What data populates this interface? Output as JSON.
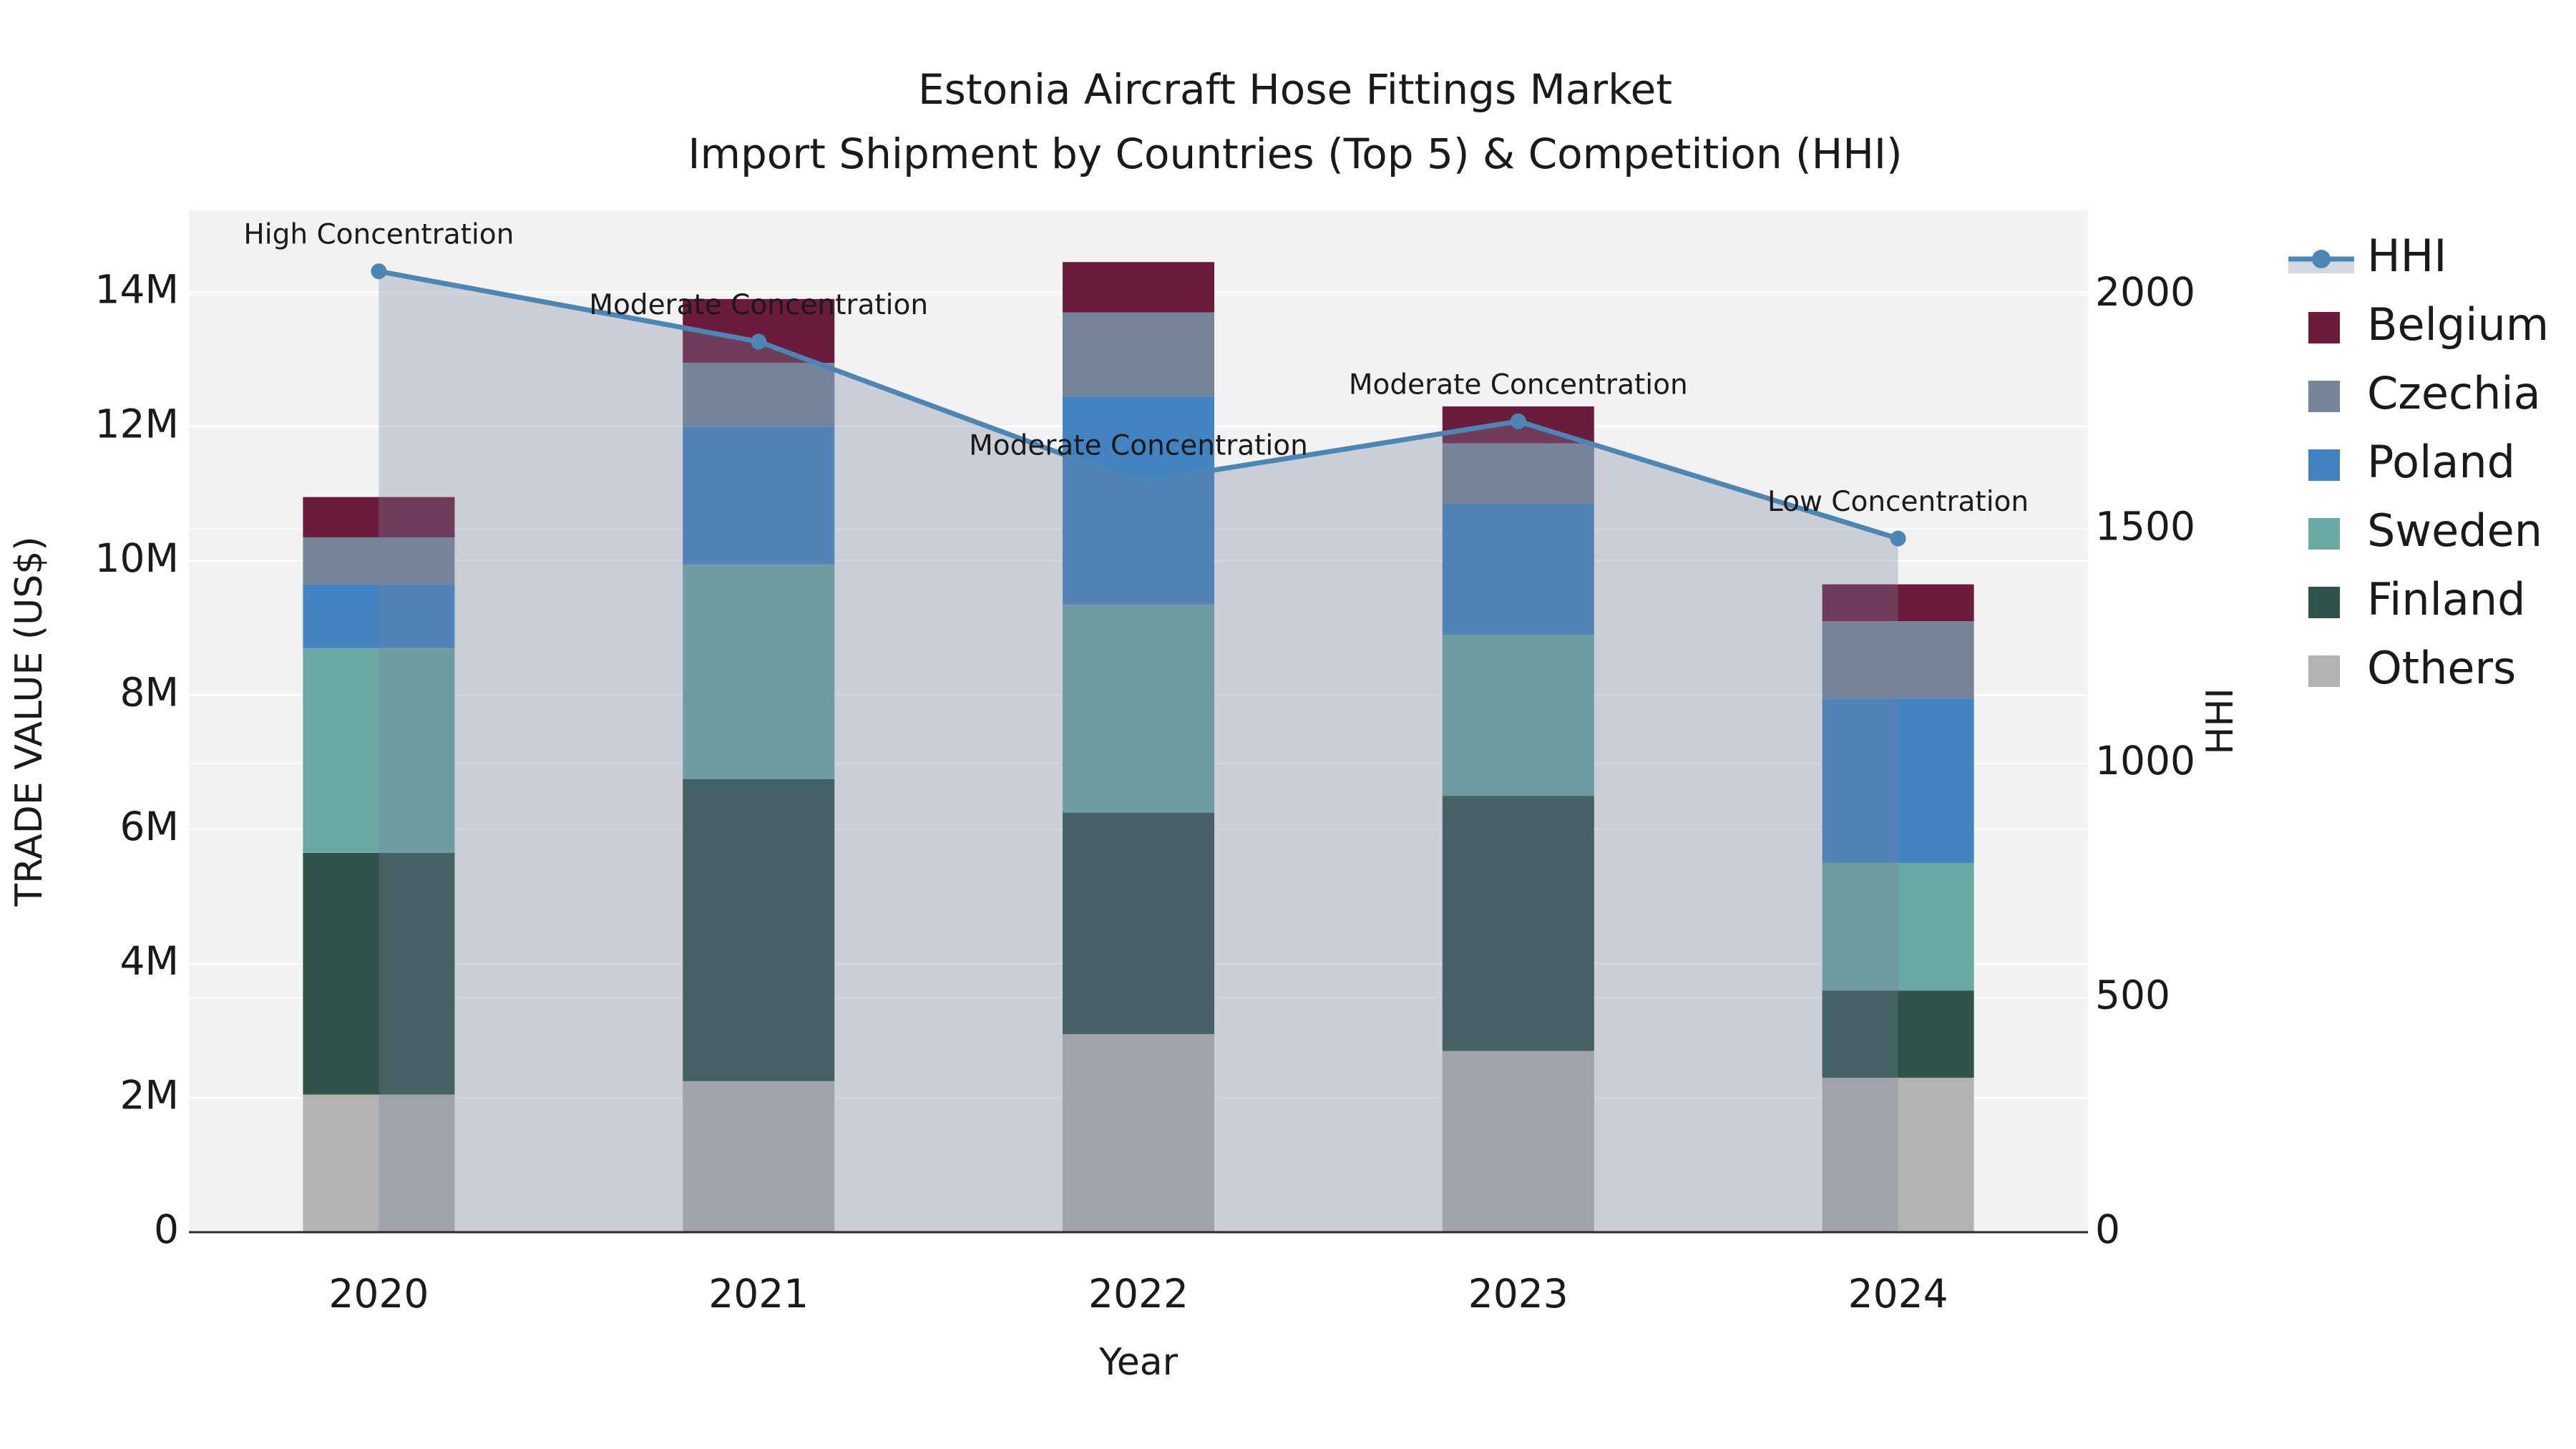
{
  "chart_data": {
    "type": "combo-stacked-bar-line",
    "title": "Estonia Aircraft Hose Fittings Market",
    "subtitle": "Import Shipment by Countries (Top 5) & Competition (HHI)",
    "xlabel": "Year",
    "ylabel_left": "TRADE VALUE (US$)",
    "ylabel_right": "HHI",
    "categories": [
      "2020",
      "2021",
      "2022",
      "2023",
      "2024"
    ],
    "value_unit": "millions US$",
    "series": [
      {
        "name": "Others",
        "type": "bar",
        "color": "#b3b3b2",
        "values_musd": [
          2.05,
          2.25,
          2.95,
          2.7,
          2.3
        ]
      },
      {
        "name": "Finland",
        "type": "bar",
        "color": "#2f524b",
        "values_musd": [
          3.6,
          4.5,
          3.3,
          3.8,
          1.3
        ]
      },
      {
        "name": "Sweden",
        "type": "bar",
        "color": "#6aa8a6",
        "values_musd": [
          3.05,
          3.2,
          3.1,
          2.4,
          1.9
        ]
      },
      {
        "name": "Poland",
        "type": "bar",
        "color": "#4283c1",
        "values_musd": [
          0.95,
          2.05,
          3.1,
          1.95,
          2.45
        ]
      },
      {
        "name": "Czechia",
        "type": "bar",
        "color": "#768497",
        "values_musd": [
          0.7,
          0.95,
          1.25,
          0.9,
          1.15
        ]
      },
      {
        "name": "Belgium",
        "type": "bar",
        "color": "#6b1b3c",
        "values_musd": [
          0.6,
          0.95,
          0.75,
          0.55,
          0.55
        ]
      }
    ],
    "bar_totals_musd": [
      10.95,
      13.9,
      14.45,
      12.3,
      9.65
    ],
    "hhi": {
      "name": "HHI",
      "type": "line",
      "color": "#4c86b4",
      "area_fill": "rgba(120,130,160,0.32)",
      "values": [
        2050,
        1900,
        1600,
        1730,
        1480
      ]
    },
    "annotations": [
      "High Concentration",
      "Moderate Concentration",
      "Moderate Concentration",
      "Moderate Concentration",
      "Low Concentration"
    ],
    "legend": [
      "HHI",
      "Belgium",
      "Czechia",
      "Poland",
      "Sweden",
      "Finland",
      "Others"
    ],
    "y_left": {
      "ticks": [
        "0",
        "2M",
        "4M",
        "6M",
        "8M",
        "10M",
        "12M",
        "14M"
      ],
      "tick_values": [
        0,
        2,
        4,
        6,
        8,
        10,
        12,
        14
      ],
      "lim": [
        0,
        15.22
      ]
    },
    "y_right": {
      "ticks": [
        "0",
        "500",
        "1000",
        "1500",
        "2000"
      ],
      "tick_values": [
        0,
        500,
        1000,
        1500,
        2000
      ],
      "lim": [
        0,
        2180
      ]
    },
    "grid": true,
    "panel_color": "#f2f2f2",
    "gridline_color": "#ffffff",
    "axisline_color": "#2b2b2b",
    "legend_position": "right"
  }
}
